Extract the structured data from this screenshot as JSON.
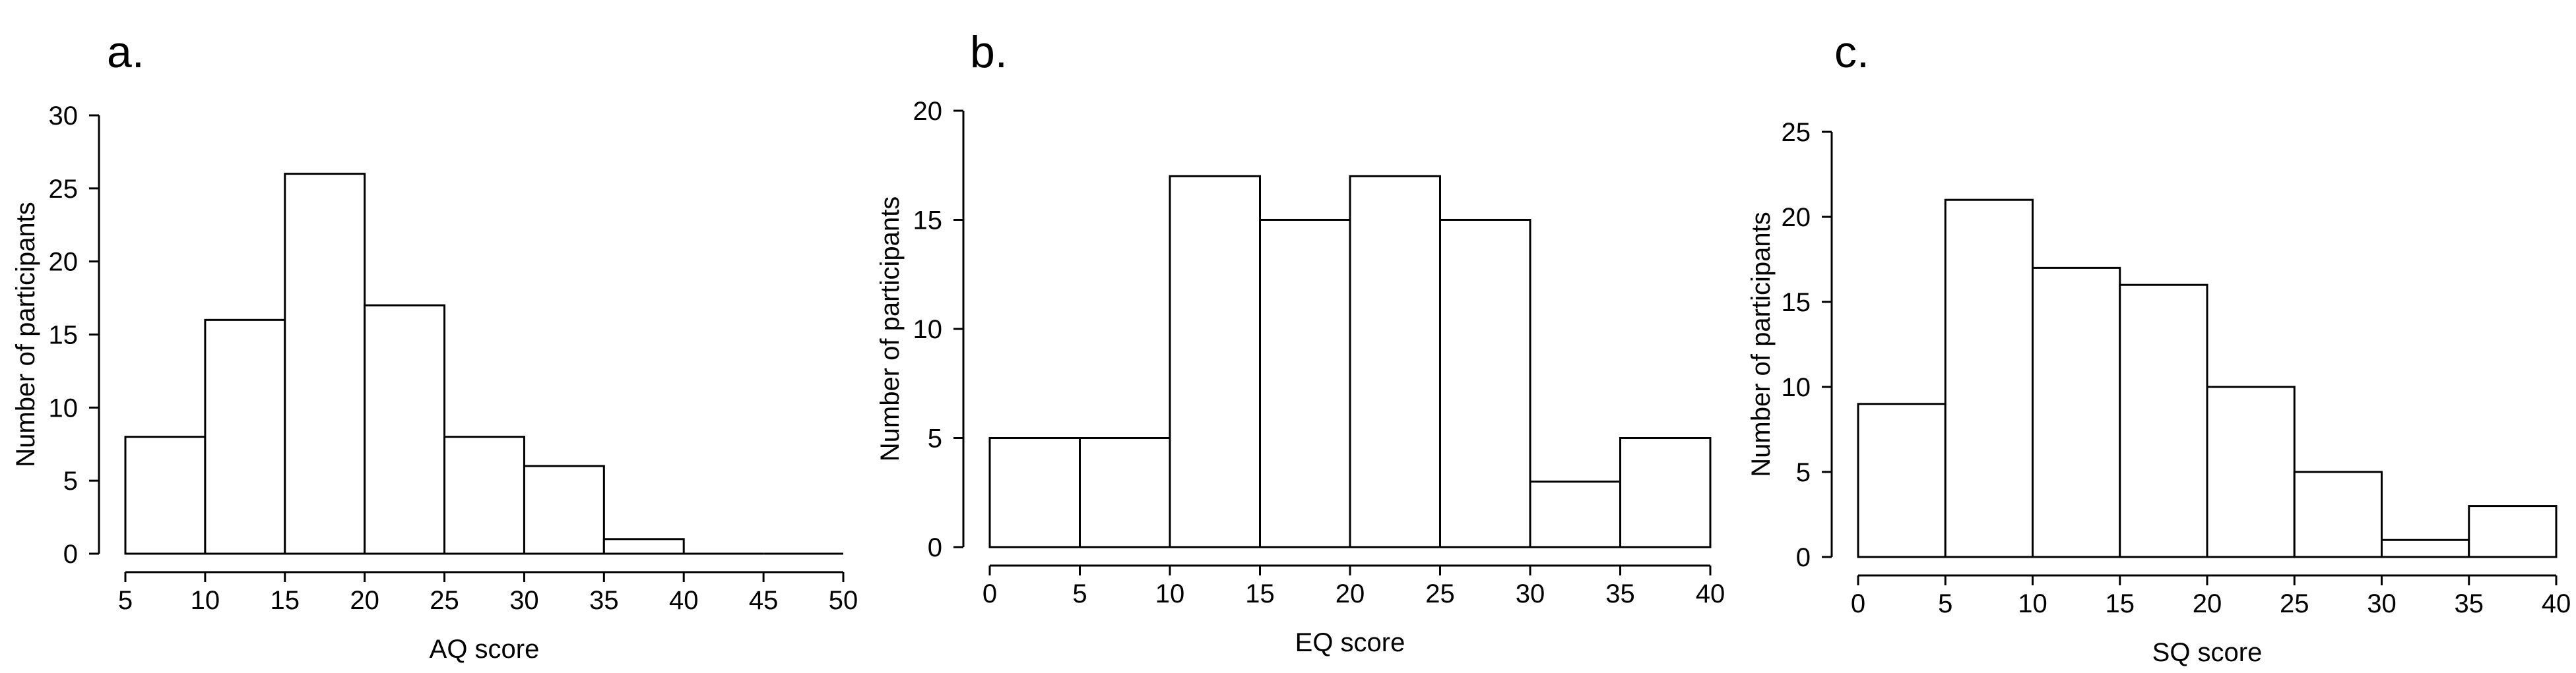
{
  "chart_data": [
    {
      "type": "bar",
      "panel_label": "a.",
      "xlabel": "AQ score",
      "ylabel": "Number of participants",
      "bins": [
        [
          5,
          10
        ],
        [
          10,
          15
        ],
        [
          15,
          20
        ],
        [
          20,
          25
        ],
        [
          25,
          30
        ],
        [
          30,
          35
        ],
        [
          35,
          40
        ],
        [
          40,
          45
        ],
        [
          45,
          50
        ]
      ],
      "values": [
        8,
        16,
        26,
        17,
        8,
        6,
        1,
        0,
        0
      ],
      "xlim": [
        5,
        50
      ],
      "ylim": [
        0,
        30
      ],
      "xticks": [
        5,
        10,
        15,
        20,
        25,
        30,
        35,
        40,
        45,
        50
      ],
      "yticks": [
        0,
        5,
        10,
        15,
        20,
        25,
        30
      ],
      "grid": false
    },
    {
      "type": "bar",
      "panel_label": "b.",
      "xlabel": "EQ score",
      "ylabel": "Number of participants",
      "bins": [
        [
          0,
          5
        ],
        [
          5,
          10
        ],
        [
          10,
          15
        ],
        [
          15,
          20
        ],
        [
          20,
          25
        ],
        [
          25,
          30
        ],
        [
          30,
          35
        ],
        [
          35,
          40
        ]
      ],
      "values": [
        5,
        5,
        17,
        15,
        17,
        15,
        3,
        5
      ],
      "xlim": [
        0,
        40
      ],
      "ylim": [
        0,
        20
      ],
      "xticks": [
        0,
        5,
        10,
        15,
        20,
        25,
        30,
        35,
        40
      ],
      "yticks": [
        0,
        5,
        10,
        15,
        20
      ],
      "grid": false
    },
    {
      "type": "bar",
      "panel_label": "c.",
      "xlabel": "SQ score",
      "ylabel": "Number of participants",
      "bins": [
        [
          0,
          5
        ],
        [
          5,
          10
        ],
        [
          10,
          15
        ],
        [
          15,
          20
        ],
        [
          20,
          25
        ],
        [
          25,
          30
        ],
        [
          30,
          35
        ],
        [
          35,
          40
        ]
      ],
      "values": [
        9,
        21,
        17,
        16,
        10,
        5,
        1,
        3
      ],
      "xlim": [
        0,
        40
      ],
      "ylim": [
        0,
        25
      ],
      "xticks": [
        0,
        5,
        10,
        15,
        20,
        25,
        30,
        35,
        40
      ],
      "yticks": [
        0,
        5,
        10,
        15,
        20,
        25
      ],
      "grid": false
    }
  ]
}
